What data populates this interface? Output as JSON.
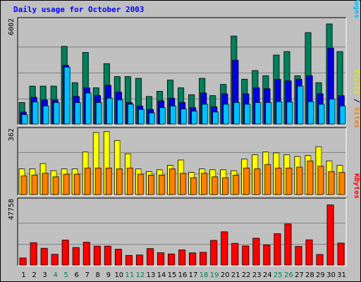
{
  "title": "Daily usage for October 2003",
  "colors": {
    "hits": "#00805c",
    "files": "#0000e6",
    "pages": "#00c0ff",
    "visits": "#ffff00",
    "sites": "#ff8000",
    "kbytes": "#ff0000",
    "weekend_day": "#00805c",
    "weekday": "#000000",
    "panel_bg": "#c0c0c0",
    "grid": "#808080"
  },
  "chart_data": [
    {
      "type": "bar",
      "panel": "hits-files-pages",
      "max_label": "6002",
      "ylim": [
        0,
        6002
      ],
      "right_labels": [
        {
          "text": "Hits",
          "color": "#00805c"
        },
        {
          "text": "Files",
          "color": "#0000e6"
        },
        {
          "text": "Pages",
          "color": "#00c0ff"
        }
      ],
      "series": [
        {
          "name": "Hits",
          "values": [
            1250,
            2200,
            2200,
            2200,
            4500,
            2400,
            4150,
            2100,
            3500,
            2750,
            2750,
            2650,
            1600,
            1900,
            2550,
            2100,
            1700,
            2650,
            1650,
            2300,
            5100,
            2600,
            3100,
            2800,
            4000,
            4200,
            2800,
            5300,
            2400,
            5800,
            4200
          ]
        },
        {
          "name": "Files",
          "values": [
            700,
            1550,
            1400,
            1400,
            3400,
            1600,
            2100,
            1650,
            2250,
            1850,
            1250,
            1050,
            850,
            1350,
            1500,
            1250,
            950,
            1800,
            1000,
            1750,
            3700,
            1750,
            2100,
            2050,
            2600,
            2500,
            2600,
            2800,
            1750,
            4400,
            1650
          ]
        },
        {
          "name": "Pages",
          "values": [
            550,
            1280,
            1050,
            1250,
            3300,
            1250,
            1800,
            1250,
            1500,
            1400,
            1150,
            850,
            650,
            950,
            1050,
            880,
            750,
            1150,
            700,
            1150,
            1250,
            1150,
            1250,
            1250,
            1300,
            1280,
            2200,
            1300,
            1150,
            1450,
            1050
          ]
        }
      ]
    },
    {
      "type": "bar",
      "panel": "visits-sites",
      "max_label": "362",
      "ylim": [
        0,
        362
      ],
      "right_labels": [
        {
          "text": "Visits",
          "color": "#e6e600"
        },
        {
          "text": "Sites",
          "color": "#ff8000"
        }
      ],
      "series": [
        {
          "name": "Visits",
          "values": [
            145,
            145,
            175,
            135,
            145,
            145,
            240,
            350,
            355,
            305,
            230,
            145,
            130,
            140,
            165,
            195,
            125,
            145,
            140,
            140,
            135,
            200,
            225,
            240,
            235,
            225,
            215,
            220,
            270,
            190,
            165
          ]
        },
        {
          "name": "Sites",
          "values": [
            105,
            110,
            120,
            100,
            115,
            115,
            150,
            150,
            150,
            145,
            150,
            115,
            110,
            110,
            145,
            120,
            95,
            120,
            100,
            95,
            110,
            150,
            145,
            170,
            150,
            150,
            155,
            190,
            160,
            130,
            125
          ]
        }
      ]
    },
    {
      "type": "bar",
      "panel": "kbytes",
      "max_label": "47758",
      "ylim": [
        0,
        47758
      ],
      "right_labels": [
        {
          "text": "KBytes",
          "color": "#ff0000"
        }
      ],
      "series": [
        {
          "name": "KBytes",
          "values": [
            5300,
            16700,
            12500,
            8000,
            18600,
            13100,
            17000,
            14100,
            14100,
            11800,
            7200,
            7500,
            12300,
            9200,
            8300,
            11300,
            9100,
            9500,
            18400,
            24800,
            16200,
            14300,
            20000,
            15000,
            23400,
            30600,
            13900,
            18800,
            7900,
            44800,
            16400
          ]
        }
      ]
    }
  ],
  "days": [
    "1",
    "2",
    "3",
    "4",
    "5",
    "6",
    "7",
    "8",
    "9",
    "10",
    "11",
    "12",
    "13",
    "14",
    "15",
    "16",
    "17",
    "18",
    "19",
    "20",
    "21",
    "22",
    "23",
    "24",
    "25",
    "26",
    "27",
    "28",
    "29",
    "30",
    "31"
  ],
  "weekend_days": [
    "4",
    "5",
    "11",
    "12",
    "18",
    "19",
    "25",
    "26"
  ]
}
